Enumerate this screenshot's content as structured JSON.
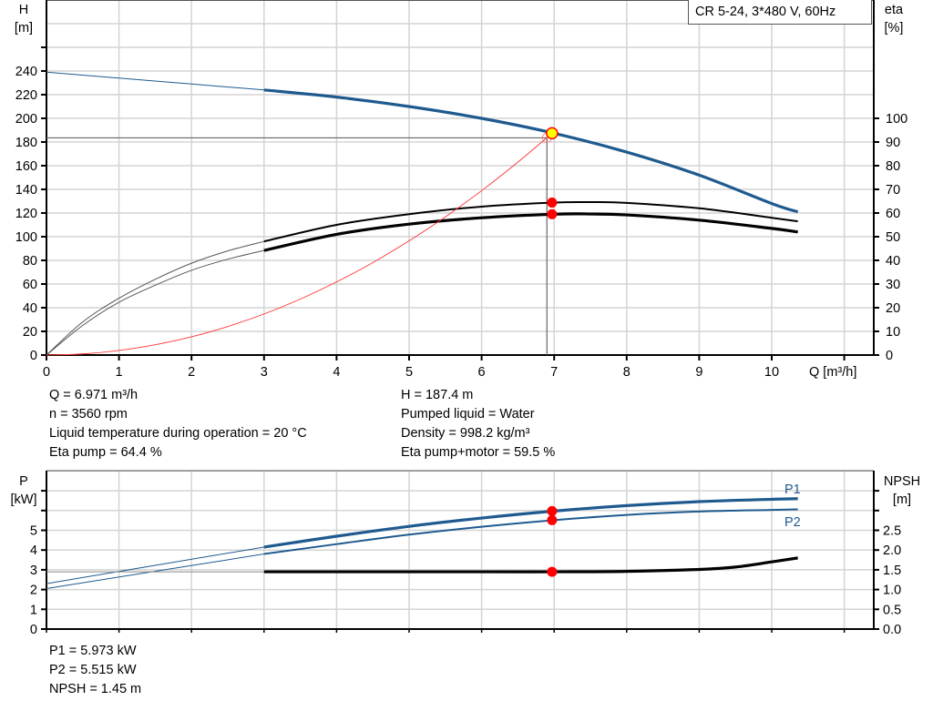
{
  "chart_data": [
    {
      "type": "line",
      "title": "CR 5-24, 3*480 V, 60Hz",
      "xlabel": "Q [m³/h]",
      "ylabel_left": [
        "H",
        "[m]"
      ],
      "ylabel_right": [
        "eta",
        "[%]"
      ],
      "xlim": [
        0,
        11.4
      ],
      "ylim_left": [
        0,
        300
      ],
      "ylim_right": [
        0,
        150
      ],
      "x_ticks": [
        "0",
        "1",
        "2",
        "3",
        "4",
        "5",
        "6",
        "7",
        "8",
        "9",
        "10"
      ],
      "y_left_ticks": [
        "0",
        "20",
        "40",
        "60",
        "80",
        "100",
        "120",
        "140",
        "160",
        "180",
        "200",
        "220",
        "240"
      ],
      "y_right_ticks": [
        "0",
        "10",
        "20",
        "30",
        "40",
        "50",
        "60",
        "70",
        "80",
        "90",
        "100"
      ],
      "grid": true,
      "operating_range_q": [
        3,
        10.36
      ],
      "series": [
        {
          "key": "H",
          "axis": "left",
          "color": "#1f5a8f",
          "x": [
            0,
            1,
            2,
            3,
            4,
            5,
            6,
            7,
            8,
            9,
            10,
            10.36
          ],
          "y": [
            239,
            234,
            229,
            224,
            218,
            210,
            200,
            187.4,
            171.5,
            152,
            128,
            121
          ]
        },
        {
          "key": "eta_pump",
          "axis": "right",
          "color": "#000000",
          "x": [
            0,
            0.5,
            1,
            1.5,
            2,
            2.5,
            3,
            4,
            5,
            6,
            7,
            7.5,
            8,
            9,
            10,
            10.36
          ],
          "y": [
            0,
            14,
            24,
            32,
            38.8,
            44,
            48,
            55,
            59.5,
            62.7,
            64.4,
            64.6,
            64.3,
            62,
            58,
            56.5
          ]
        },
        {
          "key": "eta_pump_motor",
          "axis": "right",
          "color": "#000000",
          "x": [
            0,
            0.5,
            1,
            1.5,
            2,
            2.5,
            3,
            4,
            5,
            6,
            7,
            7.5,
            8,
            9,
            10,
            10.36
          ],
          "y": [
            0,
            12.5,
            22.3,
            29.5,
            35.8,
            40.5,
            44.2,
            51,
            55.3,
            58,
            59.5,
            59.6,
            59.2,
            57,
            53.5,
            52
          ]
        },
        {
          "key": "system_curve",
          "axis": "left",
          "color": "#ff3333",
          "x": [
            0,
            0.5,
            1,
            1.5,
            2,
            2.5,
            3,
            3.5,
            4,
            4.5,
            5,
            5.5,
            6,
            6.5,
            6.971
          ],
          "y": [
            0,
            0.96,
            3.86,
            8.7,
            15.4,
            24.1,
            34.7,
            47.3,
            61.8,
            78.1,
            96.5,
            116.7,
            138.9,
            163,
            187.4
          ]
        }
      ],
      "operating_point": {
        "Q": 6.971,
        "H": 187.4,
        "eta_pump": 64.4,
        "eta_pump_motor": 59.5
      },
      "duty_point": {
        "Q": 6.9,
        "H": 183.5
      }
    },
    {
      "type": "line",
      "xlim": [
        0,
        11.4
      ],
      "ylabel_left": [
        "P",
        "[kW]"
      ],
      "ylabel_right": [
        "NPSH",
        "[m]"
      ],
      "ylim_left": [
        0,
        8
      ],
      "ylim_right": [
        0,
        4
      ],
      "y_left_ticks": [
        "0",
        "1",
        "2",
        "3",
        "4",
        "5"
      ],
      "y_right_ticks": [
        "0.0",
        "0.5",
        "1.0",
        "1.5",
        "2.0",
        "2.5"
      ],
      "grid": true,
      "operating_range_q": [
        3,
        10.36
      ],
      "series": [
        {
          "key": "P1",
          "name": "P1",
          "axis": "left",
          "color": "#1f5a8f",
          "x": [
            0,
            3,
            4,
            5,
            6,
            7,
            8,
            9,
            10,
            10.36
          ],
          "y": [
            2.3,
            4.15,
            4.7,
            5.2,
            5.62,
            5.973,
            6.25,
            6.45,
            6.57,
            6.6
          ]
        },
        {
          "key": "P2",
          "name": "P2",
          "axis": "left",
          "color": "#1f5a8f",
          "x": [
            0,
            3,
            4,
            5,
            6,
            7,
            8,
            9,
            10,
            10.36
          ],
          "y": [
            2.05,
            3.8,
            4.3,
            4.78,
            5.18,
            5.515,
            5.78,
            5.95,
            6.03,
            6.06
          ]
        },
        {
          "key": "NPSH",
          "axis": "right",
          "color": "#000000",
          "x": [
            0,
            3,
            4,
            5,
            6,
            7,
            8,
            9,
            9.5,
            10,
            10.36
          ],
          "y": [
            1.45,
            1.45,
            1.45,
            1.45,
            1.45,
            1.45,
            1.46,
            1.51,
            1.57,
            1.7,
            1.8
          ]
        }
      ],
      "operating_point": {
        "Q": 6.971,
        "P1": 5.973,
        "P2": 5.515,
        "NPSH": 1.45
      }
    }
  ],
  "info_top_left": [
    "Q = 6.971 m³/h",
    "n = 3560 rpm",
    "Liquid temperature during operation = 20 °C",
    "Eta pump = 64.4 %"
  ],
  "info_top_right": [
    "H = 187.4 m",
    "Pumped liquid = Water",
    "Density = 998.2 kg/m³",
    "Eta pump+motor = 59.5 %"
  ],
  "info_bottom": [
    "P1 = 5.973 kW",
    "P2 = 5.515 kW",
    "NPSH = 1.45 m"
  ],
  "colors": {
    "curve_blue": "#1f5a8f",
    "marker_red": "#ff0000",
    "marker_yellow": "#ffff00",
    "grid": "#d4d4d4"
  }
}
